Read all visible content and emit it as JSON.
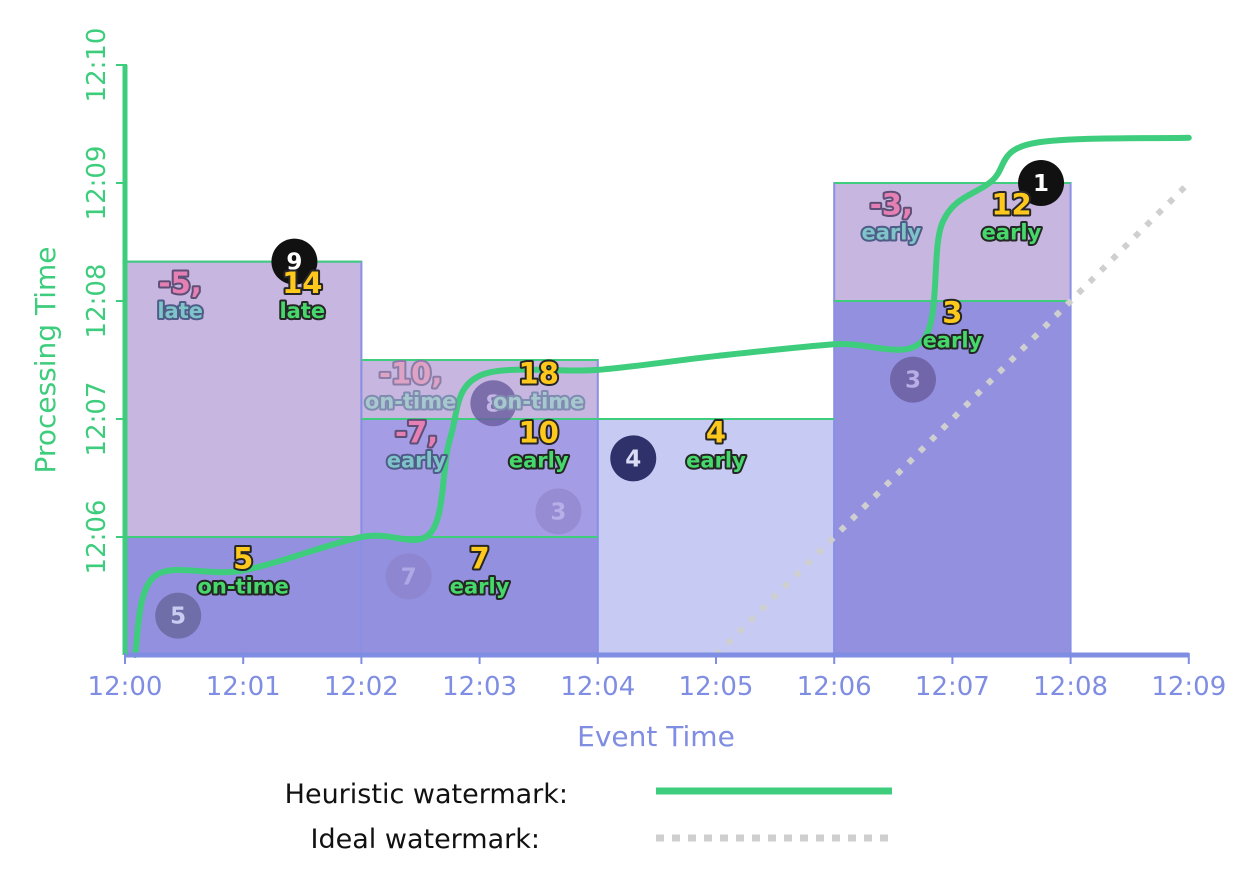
{
  "axes": {
    "x_title": "Event Time",
    "y_title": "Processing Time",
    "x_ticks": [
      "12:00",
      "12:01",
      "12:02",
      "12:03",
      "12:04",
      "12:05",
      "12:06",
      "12:07",
      "12:08",
      "12:09"
    ],
    "y_ticks": [
      "12:06",
      "12:07",
      "12:08",
      "12:09",
      "12:10"
    ]
  },
  "legend": {
    "heuristic_label": "Heuristic watermark:",
    "ideal_label": "Ideal watermark:"
  },
  "colors": {
    "event_axis": "#7f8de2",
    "processing_axis": "#3dcd7c",
    "heuristic_watermark": "#3dcd7c",
    "ideal_watermark": "#cfcfcf",
    "pane_light": "#c7cbf3",
    "pane_mid": "#a59ce6",
    "pane_dark": "#9390e0",
    "pane_late": "#c6b6e0",
    "result_gold": "#ffc81c",
    "label_green": "#46d86a"
  },
  "chart_data": {
    "type": "area",
    "x_range": [
      "12:00",
      "12:09"
    ],
    "y_range": [
      "12:05",
      "12:10"
    ],
    "watermarks": {
      "heuristic": [
        [
          "12:00:05",
          "12:05:00"
        ],
        [
          "12:00:15",
          "12:05:40"
        ],
        [
          "12:01:00",
          "12:05:43"
        ],
        [
          "12:02:00",
          "12:06:00"
        ],
        [
          "12:02:35",
          "12:06:02"
        ],
        [
          "12:02:45",
          "12:06:50"
        ],
        [
          "12:03:00",
          "12:07:22"
        ],
        [
          "12:04:00",
          "12:07:25"
        ],
        [
          "12:05:00",
          "12:07:32"
        ],
        [
          "12:06:00",
          "12:07:38"
        ],
        [
          "12:06:45",
          "12:07:40"
        ],
        [
          "12:06:55",
          "12:08:40"
        ],
        [
          "12:07:20",
          "12:09:01"
        ],
        [
          "12:07:40",
          "12:09:20"
        ],
        [
          "12:09:00",
          "12:09:23"
        ]
      ],
      "ideal": [
        [
          "12:05:00",
          "12:05:00"
        ],
        [
          "12:09:00",
          "12:09:00"
        ]
      ]
    },
    "panes": [
      {
        "window": [
          "12:00",
          "12:02"
        ],
        "processing": [
          "12:05",
          "12:06"
        ],
        "tone": "dark"
      },
      {
        "window": [
          "12:00",
          "12:02"
        ],
        "processing": [
          "12:06",
          "12:08:20"
        ],
        "tone": "late"
      },
      {
        "window": [
          "12:02",
          "12:04"
        ],
        "processing": [
          "12:05",
          "12:06"
        ],
        "tone": "dark"
      },
      {
        "window": [
          "12:02",
          "12:04"
        ],
        "processing": [
          "12:06",
          "12:07"
        ],
        "tone": "mid"
      },
      {
        "window": [
          "12:02",
          "12:04"
        ],
        "processing": [
          "12:07",
          "12:07:30"
        ],
        "tone": "late"
      },
      {
        "window": [
          "12:04",
          "12:06"
        ],
        "processing": [
          "12:05",
          "12:07"
        ],
        "tone": "light"
      },
      {
        "window": [
          "12:06",
          "12:08"
        ],
        "processing": [
          "12:05",
          "12:08"
        ],
        "tone": "dark"
      },
      {
        "window": [
          "12:06",
          "12:08"
        ],
        "processing": [
          "12:08",
          "12:09"
        ],
        "tone": "late"
      }
    ],
    "points": [
      {
        "label": "5",
        "event_time": "12:00:27",
        "processing_time": "12:05:20",
        "tone": "dark"
      },
      {
        "label": "9",
        "event_time": "12:01:26",
        "processing_time": "12:08:20",
        "tone": "black"
      },
      {
        "label": "7",
        "event_time": "12:02:24",
        "processing_time": "12:05:40",
        "tone": "faint"
      },
      {
        "label": "8",
        "event_time": "12:03:07",
        "processing_time": "12:07:08",
        "tone": "faint-dark"
      },
      {
        "label": "3",
        "event_time": "12:03:40",
        "processing_time": "12:06:13",
        "tone": "faint"
      },
      {
        "label": "4",
        "event_time": "12:04:18",
        "processing_time": "12:06:40",
        "tone": "navy"
      },
      {
        "label": "3",
        "event_time": "12:06:40",
        "processing_time": "12:07:20",
        "tone": "faint-dark"
      },
      {
        "label": "1",
        "event_time": "12:07:45",
        "processing_time": "12:09:00",
        "tone": "black"
      }
    ],
    "pane_results": [
      {
        "value": "5",
        "timing": "on-time",
        "event_time": "12:01:00",
        "processing_time": "12:05:40",
        "style": "main"
      },
      {
        "value": "-5,",
        "timing": "late",
        "event_time": "12:00:28",
        "processing_time": "12:08:00",
        "style": "previous"
      },
      {
        "value": "14",
        "timing": "late",
        "event_time": "12:01:30",
        "processing_time": "12:08:00",
        "style": "main"
      },
      {
        "value": "7",
        "timing": "early",
        "event_time": "12:03:00",
        "processing_time": "12:05:40",
        "style": "main"
      },
      {
        "value": "-10,",
        "timing": "on-time",
        "event_time": "12:02:25",
        "processing_time": "12:07:14",
        "style": "dim"
      },
      {
        "value": "18",
        "timing": "on-time",
        "event_time": "12:03:30",
        "processing_time": "12:07:14",
        "style": "dim-main"
      },
      {
        "value": "-7,",
        "timing": "early",
        "event_time": "12:02:28",
        "processing_time": "12:06:44",
        "style": "previous"
      },
      {
        "value": "10",
        "timing": "early",
        "event_time": "12:03:30",
        "processing_time": "12:06:44",
        "style": "main"
      },
      {
        "value": "4",
        "timing": "early",
        "event_time": "12:05:00",
        "processing_time": "12:06:44",
        "style": "main"
      },
      {
        "value": "3",
        "timing": "early",
        "event_time": "12:07:00",
        "processing_time": "12:07:45",
        "style": "main"
      },
      {
        "value": "-3,",
        "timing": "early",
        "event_time": "12:06:29",
        "processing_time": "12:08:40",
        "style": "previous"
      },
      {
        "value": "12",
        "timing": "early",
        "event_time": "12:07:30",
        "processing_time": "12:08:40",
        "style": "main"
      }
    ]
  }
}
